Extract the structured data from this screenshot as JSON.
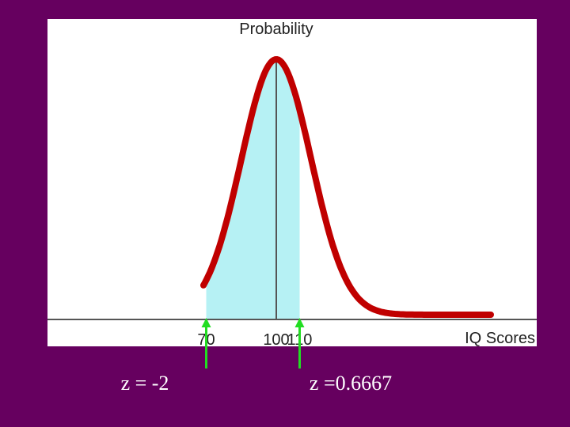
{
  "chart_data": {
    "type": "area",
    "ylabel": "Probability",
    "xlabel": "IQ Scores",
    "x_ticks": [
      {
        "value": 70,
        "label": "70"
      },
      {
        "value": 100,
        "label": "100"
      },
      {
        "value": 110,
        "label": "110"
      }
    ],
    "distribution": {
      "mean": 100,
      "sd": 15
    },
    "shaded_range": [
      70,
      110
    ],
    "annotations": [
      {
        "x": 70,
        "label": "z = -2"
      },
      {
        "x": 110,
        "label": "z =0.6667"
      }
    ],
    "colors": {
      "background": "#66005f",
      "plot_area": "#ffffff",
      "curve": "#c00000",
      "shade": "#b6f1f4",
      "arrow": "#22dd22",
      "axis": "#555555"
    }
  }
}
